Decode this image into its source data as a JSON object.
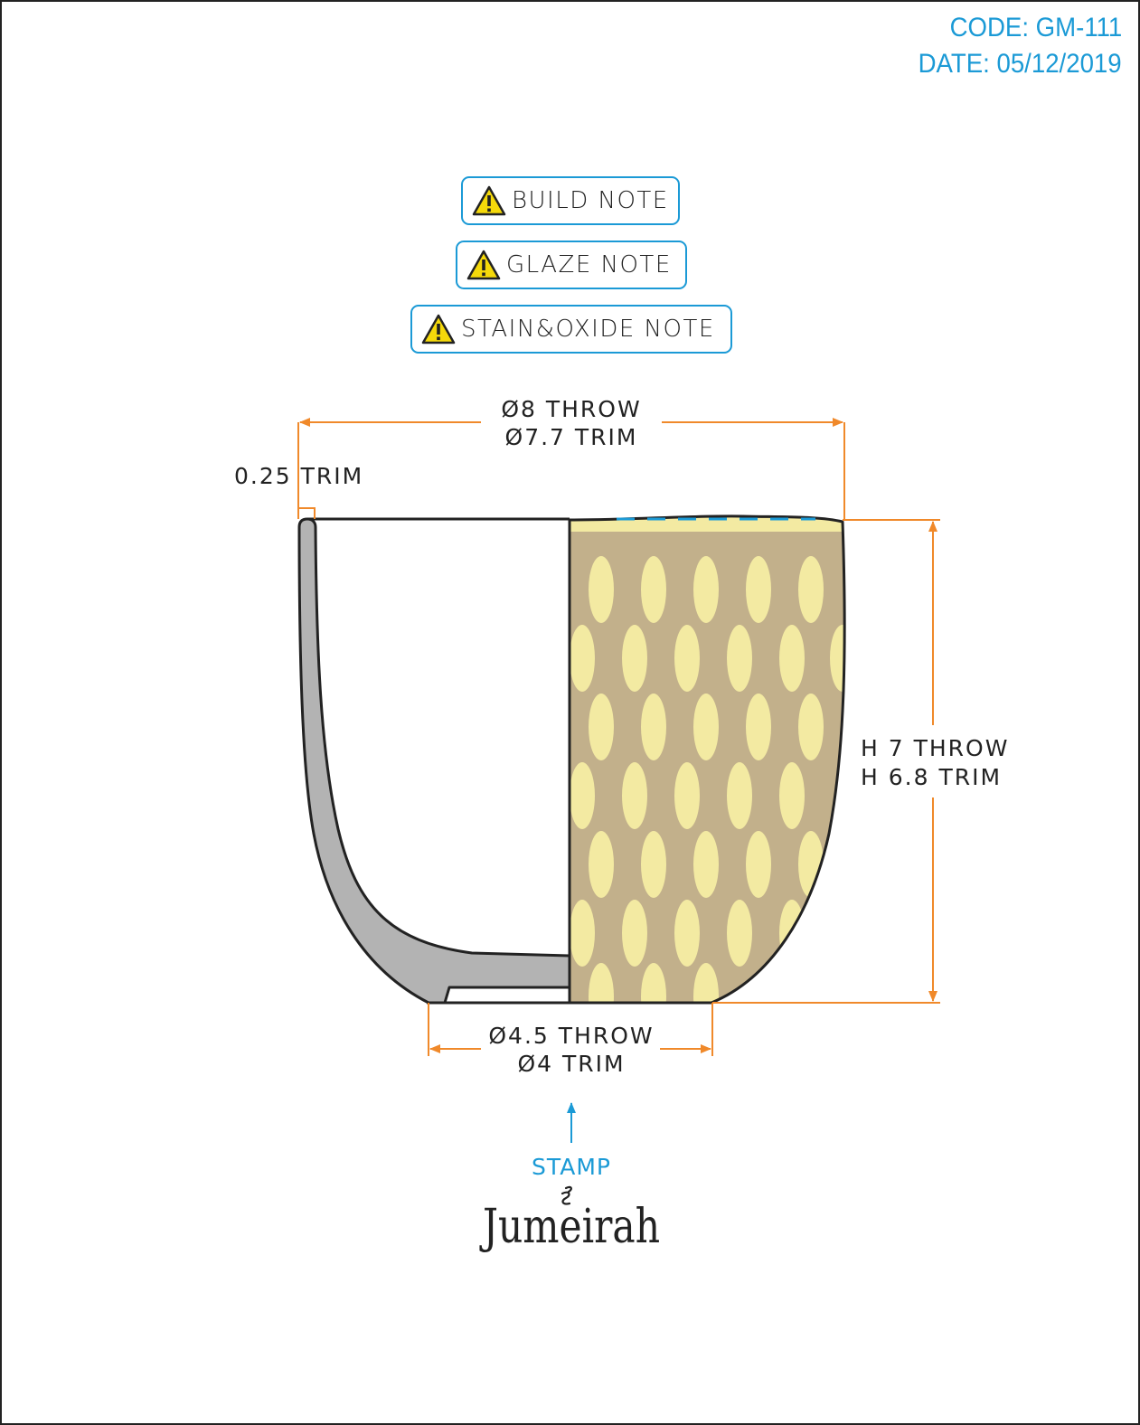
{
  "header": {
    "code_label": "CODE:",
    "code_value": "GM-111",
    "date_label": "DATE:",
    "date_value": "05/12/2019"
  },
  "notes": [
    {
      "label": "BUILD NOTE",
      "icon": "warning-triangle-icon"
    },
    {
      "label": "GLAZE NOTE",
      "icon": "warning-triangle-icon"
    },
    {
      "label": "STAIN&OXIDE NOTE",
      "icon": "warning-triangle-icon"
    }
  ],
  "dimensions": {
    "top_throw": "Ø8 THROW",
    "top_trim": "Ø7.7 TRIM",
    "wall_trim": "0.25 TRIM",
    "height_throw": "H 7 THROW",
    "height_trim": "H 6.8 TRIM",
    "base_throw": "Ø4.5 THROW",
    "base_trim": "Ø4 TRIM"
  },
  "stamp": {
    "label": "STAMP",
    "logo": "Jumeirah"
  },
  "colors": {
    "dimension_line": "#f0892a",
    "accent_blue": "#1b9ad6",
    "section_gray": "#b3b3b3",
    "glaze_tan": "#c2b08b",
    "dot_cream": "#f3eaa2",
    "outline": "#222222"
  }
}
